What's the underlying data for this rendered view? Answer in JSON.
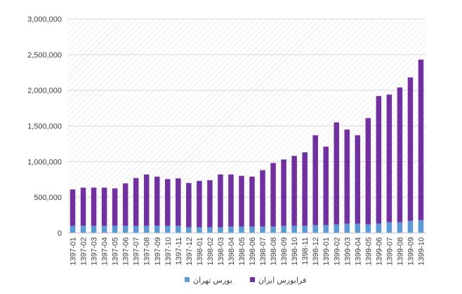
{
  "chart_data": {
    "type": "bar",
    "stacked": true,
    "categories": [
      "1397-01",
      "1397-02",
      "1397-03",
      "1397-04",
      "1397-05",
      "1397-06",
      "1397-07",
      "1397-08",
      "1397-09",
      "1397-10",
      "1397-11",
      "1397-12",
      "1398-01",
      "1398-02",
      "1398-03",
      "1398-04",
      "1398-05",
      "1398-06",
      "1398-07",
      "1398-08",
      "1398-09",
      "1398-10",
      "1398-11",
      "1398-12",
      "1399-01",
      "1399-02",
      "1399-03",
      "1399-04",
      "1399-05",
      "1399-06",
      "1399-07",
      "1399-08",
      "1399-09",
      "1399-10"
    ],
    "series": [
      {
        "name": "بورس تهران",
        "color": "#5b9bd5",
        "values": [
          100000,
          100000,
          100000,
          100000,
          100000,
          100000,
          100000,
          100000,
          100000,
          100000,
          100000,
          80000,
          80000,
          80000,
          80000,
          90000,
          90000,
          90000,
          90000,
          90000,
          100000,
          100000,
          100000,
          110000,
          110000,
          120000,
          130000,
          130000,
          120000,
          130000,
          150000,
          150000,
          170000,
          180000
        ]
      },
      {
        "name": "فرابورس ایران",
        "color": "#7030a0",
        "values": [
          510000,
          535000,
          535000,
          535000,
          525000,
          595000,
          670000,
          720000,
          690000,
          655000,
          665000,
          620000,
          650000,
          660000,
          740000,
          730000,
          710000,
          700000,
          790000,
          890000,
          930000,
          980000,
          1030000,
          1260000,
          1100000,
          1430000,
          1320000,
          1240000,
          1490000,
          1790000,
          1790000,
          1890000,
          2010000,
          2250000
        ]
      }
    ],
    "ylim": [
      0,
      3000000
    ],
    "yticks": [
      0,
      500000,
      1000000,
      1500000,
      2000000,
      2500000,
      3000000
    ],
    "ytick_labels": [
      "0",
      "500,000",
      "1,000,000",
      "1,500,000",
      "2,000,000",
      "2,500,000",
      "3,000,000"
    ],
    "grid": true,
    "legend_position": "bottom",
    "legend": [
      {
        "label": "فرابورس ایران",
        "color": "#7030a0"
      },
      {
        "label": "بورس تهران",
        "color": "#5b9bd5"
      }
    ],
    "title": "",
    "xlabel": "",
    "ylabel": ""
  }
}
